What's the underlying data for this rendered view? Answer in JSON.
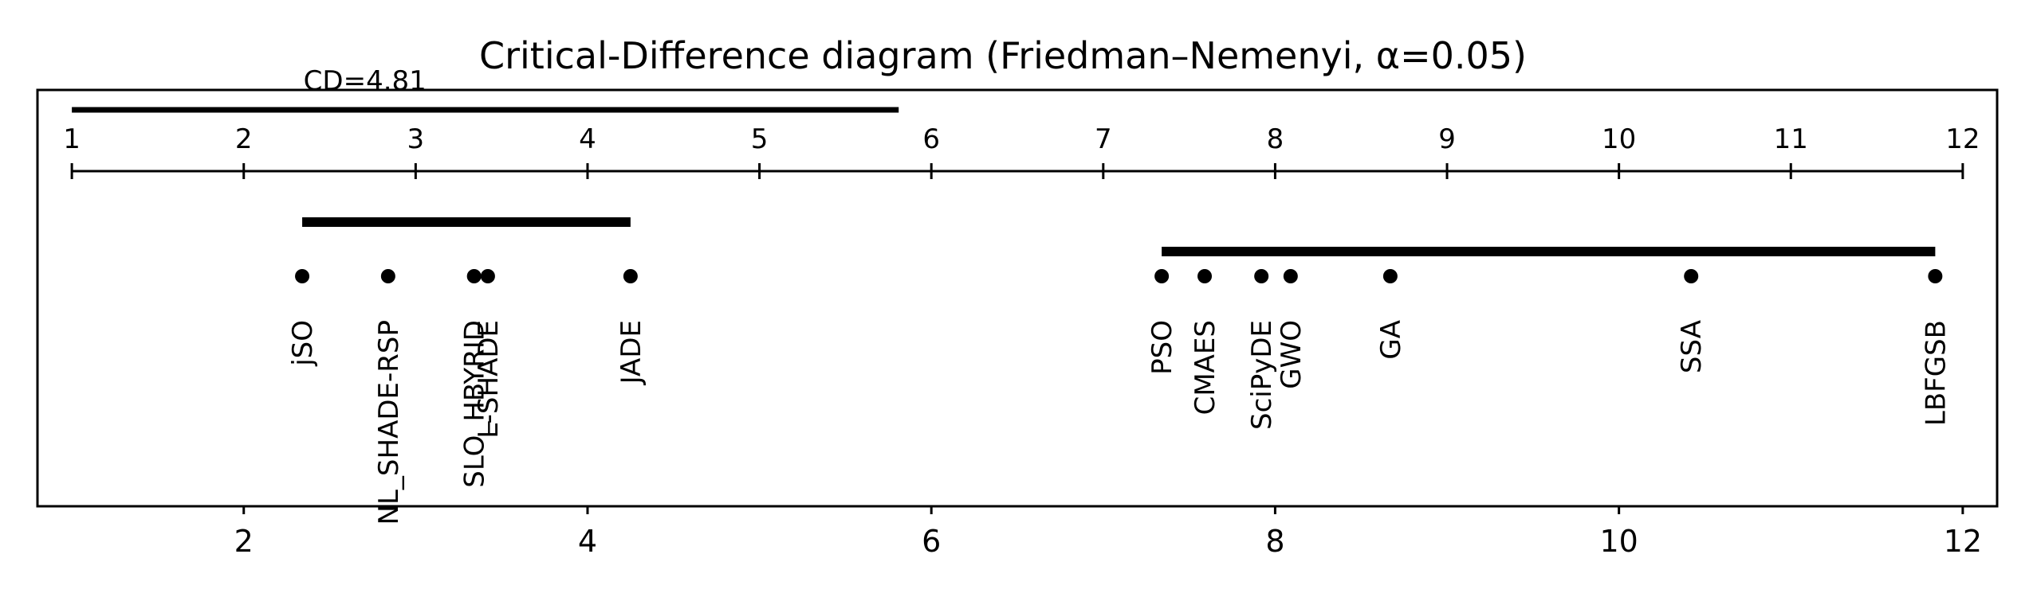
{
  "chart_data": {
    "type": "scatter",
    "title": "Critical-Difference diagram (Friedman–Nemenyi, α=0.05)",
    "cd_label": "CD=4.81",
    "critical_difference": 4.81,
    "rank_axis": {
      "min": 1,
      "max": 12,
      "ticks": [
        "1",
        "2",
        "3",
        "4",
        "5",
        "6",
        "7",
        "8",
        "9",
        "10",
        "11",
        "12"
      ]
    },
    "x_axis": {
      "xlim": [
        0.8,
        12.2
      ],
      "ticks": [
        "2",
        "4",
        "6",
        "8",
        "10",
        "12"
      ]
    },
    "methods": [
      {
        "name": "jSO",
        "rank": 2.34
      },
      {
        "name": "NL_SHADE-RSP",
        "rank": 2.84
      },
      {
        "name": "SLO_HBYRID",
        "rank": 3.34
      },
      {
        "name": "L-SHADE",
        "rank": 3.42
      },
      {
        "name": "JADE",
        "rank": 4.25
      },
      {
        "name": "PSO",
        "rank": 7.34
      },
      {
        "name": "CMAES",
        "rank": 7.59
      },
      {
        "name": "SciPyDE",
        "rank": 7.92
      },
      {
        "name": "GWO",
        "rank": 8.09
      },
      {
        "name": "GA",
        "rank": 8.67
      },
      {
        "name": "SSA",
        "rank": 10.42
      },
      {
        "name": "LBFGSB",
        "rank": 11.84
      }
    ],
    "cliques": [
      {
        "start": 2.34,
        "end": 4.25
      },
      {
        "start": 7.34,
        "end": 11.84
      }
    ],
    "colors": {
      "ink": "#000000",
      "background": "#ffffff"
    }
  }
}
